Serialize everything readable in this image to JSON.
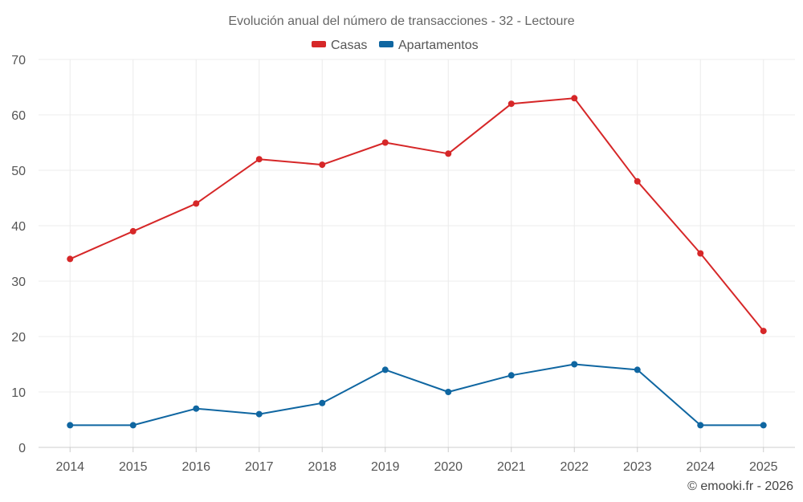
{
  "chart_data": {
    "type": "line",
    "title": "Evolución anual del número de transacciones - 32 - Lectoure",
    "categories": [
      "2014",
      "2015",
      "2016",
      "2017",
      "2018",
      "2019",
      "2020",
      "2021",
      "2022",
      "2023",
      "2024",
      "2025"
    ],
    "series": [
      {
        "name": "Casas",
        "color": "#d62728",
        "values": [
          34,
          39,
          44,
          52,
          51,
          55,
          53,
          62,
          63,
          48,
          35,
          21
        ]
      },
      {
        "name": "Apartamentos",
        "color": "#0f66a1",
        "values": [
          4,
          4,
          7,
          6,
          8,
          14,
          10,
          13,
          15,
          14,
          4,
          4
        ]
      }
    ],
    "ylim": [
      0,
      70
    ],
    "yticks": [
      0,
      10,
      20,
      30,
      40,
      50,
      60,
      70
    ],
    "xlabel": "",
    "ylabel": "",
    "legend_position": "top-center",
    "grid": true
  },
  "credit": "© emooki.fr - 2026"
}
